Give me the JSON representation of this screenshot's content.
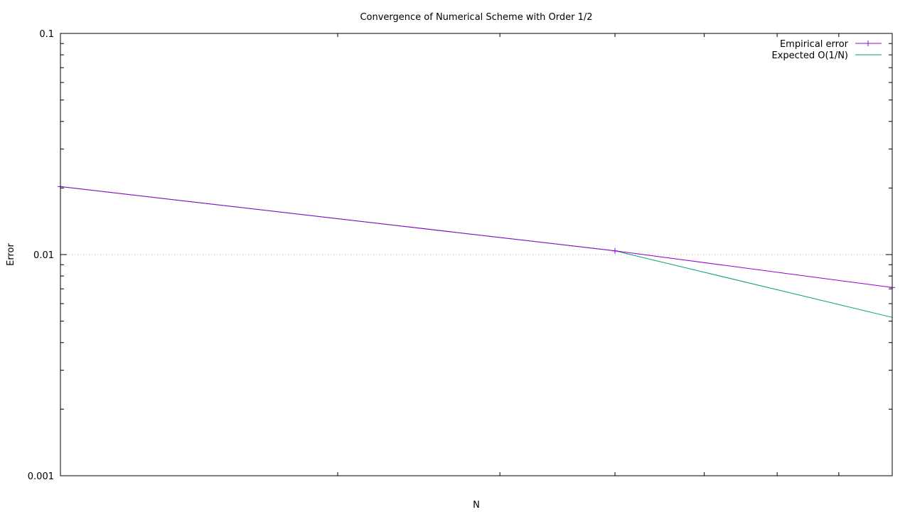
{
  "chart_data": {
    "type": "line",
    "title": "Convergence of Numerical Scheme with Order 1/2",
    "xlabel": "N",
    "ylabel": "Error",
    "y_scale": "log",
    "x_scale": "log",
    "ylim": [
      0.001,
      0.1
    ],
    "xlim": [
      10,
      80
    ],
    "y_ticks": [
      {
        "value": 0.001,
        "label": "0.001"
      },
      {
        "value": 0.01,
        "label": "0.01"
      },
      {
        "value": 0.1,
        "label": "0.1"
      }
    ],
    "x_tick_labels": [],
    "grid": "horizontal dotted at major y ticks",
    "legend_position": "top-right",
    "series": [
      {
        "name": "Empirical error",
        "color": "#9400d3",
        "marker": "plus",
        "x": [
          10,
          40,
          80
        ],
        "y": [
          0.0203,
          0.0104,
          0.0071
        ]
      },
      {
        "name": "Expected O(1/N)",
        "color": "#009e73",
        "marker": "none",
        "x": [
          10,
          40,
          80
        ],
        "y": [
          0.0203,
          0.0104,
          0.0052
        ]
      }
    ]
  }
}
